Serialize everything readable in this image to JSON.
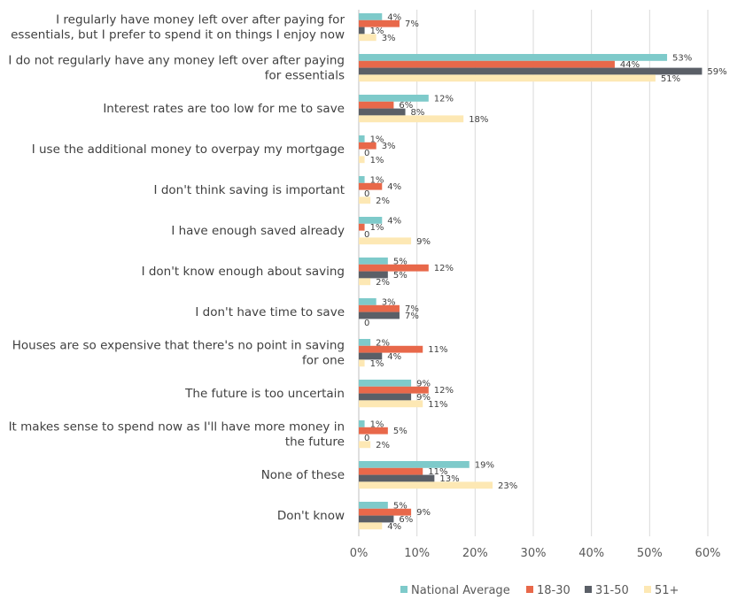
{
  "chart_data": {
    "type": "bar",
    "orientation": "horizontal",
    "xlim": [
      0,
      60
    ],
    "x_ticks": [
      "0%",
      "10%",
      "20%",
      "30%",
      "40%",
      "50%",
      "60%"
    ],
    "grid": "vertical",
    "legend_position": "bottom",
    "categories": [
      [
        "I regularly have money left over after paying for",
        "essentials, but I prefer to spend it on things I enjoy now"
      ],
      [
        "I do not regularly have any money left over after paying",
        "for essentials"
      ],
      [
        "Interest rates are too low for me to save"
      ],
      [
        "I use the additional money to overpay my mortgage"
      ],
      [
        "I don't think saving is important"
      ],
      [
        "I have enough saved already"
      ],
      [
        "I don't know enough about saving"
      ],
      [
        "I don't have time to save"
      ],
      [
        "Houses are so expensive that there's no point in saving",
        "for one"
      ],
      [
        "The future is too uncertain"
      ],
      [
        "It makes sense to spend now as I'll have more money in",
        "the future"
      ],
      [
        "None of these"
      ],
      [
        "Don't know"
      ]
    ],
    "series": [
      {
        "name": "National Average",
        "color": "#7ecaca",
        "values": [
          4,
          53,
          12,
          1,
          1,
          4,
          5,
          3,
          2,
          9,
          1,
          19,
          5
        ],
        "labels": [
          "4%",
          "53%",
          "12%",
          "1%",
          "1%",
          "4%",
          "5%",
          "3%",
          "2%",
          "9%",
          "1%",
          "19%",
          "5%"
        ]
      },
      {
        "name": "18-30",
        "color": "#e8684a",
        "values": [
          7,
          44,
          6,
          3,
          4,
          1,
          12,
          7,
          11,
          12,
          5,
          11,
          9
        ],
        "labels": [
          "7%",
          "44%",
          "6%",
          "3%",
          "4%",
          "1%",
          "12%",
          "7%",
          "11%",
          "12%",
          "5%",
          "11%",
          "9%"
        ]
      },
      {
        "name": "31-50",
        "color": "#5a5f67",
        "values": [
          1,
          59,
          8,
          0,
          0,
          0,
          5,
          7,
          4,
          9,
          0,
          13,
          6
        ],
        "labels": [
          "1%",
          "59%",
          "8%",
          "0",
          "0",
          "0",
          "5%",
          "7%",
          "4%",
          "9%",
          "0",
          "13%",
          "6%"
        ]
      },
      {
        "name": "51+",
        "color": "#fde8b4",
        "values": [
          3,
          51,
          18,
          1,
          2,
          9,
          2,
          0,
          1,
          11,
          2,
          23,
          4
        ],
        "labels": [
          "3%",
          "51%",
          "18%",
          "1%",
          "2%",
          "9%",
          "2%",
          "0",
          "1%",
          "11%",
          "2%",
          "23%",
          "4%"
        ]
      }
    ]
  }
}
